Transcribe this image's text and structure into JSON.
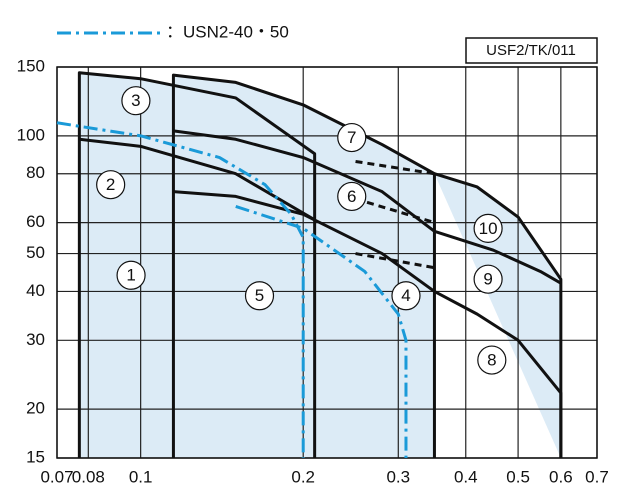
{
  "chart_data": {
    "type": "line",
    "xscale": "log",
    "yscale": "log",
    "grid": true,
    "xlim": [
      0.07,
      0.7
    ],
    "ylim": [
      15,
      150
    ],
    "xticks": [
      0.07,
      0.08,
      0.1,
      0.2,
      0.3,
      0.4,
      0.5,
      0.6,
      0.7
    ],
    "yticks": [
      15,
      20,
      30,
      40,
      50,
      60,
      80,
      100,
      150
    ],
    "code": "USF2/TK/011",
    "series": [
      {
        "color": "#111111",
        "linestyle": "solid",
        "fill": "#dcebf6",
        "x": [
          0.077,
          0.077,
          0.1,
          0.15,
          0.21,
          0.21
        ],
        "y": [
          15,
          145,
          140,
          125,
          90,
          15
        ]
      },
      {
        "color": "#111111",
        "linestyle": "solid",
        "fill": "#dcebf6",
        "x": [
          0.115,
          0.115,
          0.15,
          0.2,
          0.28,
          0.35,
          0.35
        ],
        "y": [
          15,
          143,
          137,
          120,
          95,
          80,
          15
        ]
      },
      {
        "color": "#111111",
        "linestyle": "solid",
        "fill": "#dcebf6",
        "x": [
          0.35,
          0.42,
          0.5,
          0.6,
          0.6
        ],
        "y": [
          80,
          74,
          62,
          43,
          15
        ]
      },
      {
        "color": "#111111",
        "linestyle": "solid",
        "x": [
          0.077,
          0.1,
          0.15,
          0.21
        ],
        "y": [
          98,
          94,
          80,
          61
        ]
      },
      {
        "color": "#111111",
        "linestyle": "solid",
        "x": [
          0.115,
          0.15,
          0.2,
          0.28,
          0.35
        ],
        "y": [
          103,
          98,
          88,
          72,
          57
        ]
      },
      {
        "color": "#111111",
        "linestyle": "solid",
        "x": [
          0.115,
          0.15,
          0.2,
          0.28,
          0.35
        ],
        "y": [
          72,
          70,
          63,
          50,
          40
        ]
      },
      {
        "color": "#111111",
        "linestyle": "solid",
        "x": [
          0.35,
          0.45,
          0.55,
          0.6
        ],
        "y": [
          57,
          51,
          45,
          42
        ]
      },
      {
        "color": "#111111",
        "linestyle": "solid",
        "x": [
          0.35,
          0.42,
          0.5,
          0.6,
          0.6
        ],
        "y": [
          40,
          35,
          30,
          22,
          15
        ]
      },
      {
        "color": "#111111",
        "linestyle": "dashed",
        "x": [
          0.25,
          0.35
        ],
        "y": [
          86,
          80
        ]
      },
      {
        "color": "#111111",
        "linestyle": "dashed",
        "x": [
          0.25,
          0.35
        ],
        "y": [
          69,
          60
        ]
      },
      {
        "color": "#111111",
        "linestyle": "dashed",
        "x": [
          0.25,
          0.35
        ],
        "y": [
          50,
          46
        ]
      },
      {
        "name": "：USN2-40・50",
        "color": "#1a9ad8",
        "linestyle": "dashdot",
        "x": [
          0.07,
          0.1,
          0.14,
          0.17,
          0.19,
          0.2,
          0.2
        ],
        "y": [
          108,
          100,
          88,
          75,
          63,
          55,
          15
        ]
      },
      {
        "color": "#1a9ad8",
        "linestyle": "dashdot",
        "x": [
          0.15,
          0.2,
          0.26,
          0.3,
          0.31,
          0.31
        ],
        "y": [
          66,
          58,
          45,
          35,
          30,
          15
        ]
      }
    ],
    "annotations": [
      {
        "text": "1",
        "x": 0.096,
        "y": 44
      },
      {
        "text": "2",
        "x": 0.088,
        "y": 75
      },
      {
        "text": "3",
        "x": 0.098,
        "y": 123
      },
      {
        "text": "4",
        "x": 0.31,
        "y": 39
      },
      {
        "text": "5",
        "x": 0.166,
        "y": 39
      },
      {
        "text": "6",
        "x": 0.246,
        "y": 70
      },
      {
        "text": "7",
        "x": 0.246,
        "y": 99
      },
      {
        "text": "8",
        "x": 0.447,
        "y": 26.7
      },
      {
        "text": "9",
        "x": 0.44,
        "y": 43
      },
      {
        "text": "10",
        "x": 0.44,
        "y": 58
      }
    ]
  }
}
